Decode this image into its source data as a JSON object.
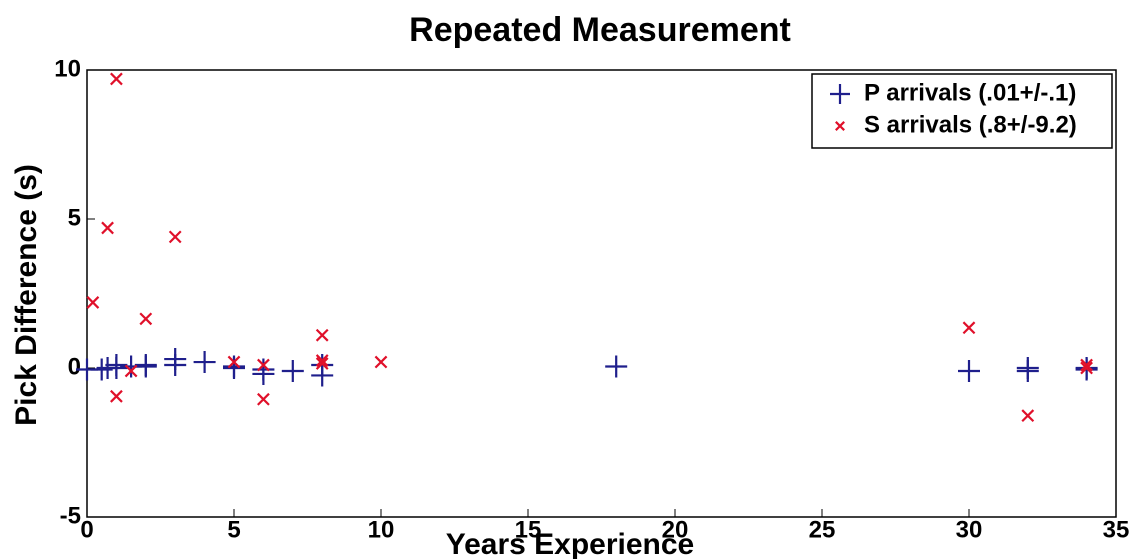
{
  "chart_data": {
    "type": "scatter",
    "title": "Repeated Measurement",
    "x_label": "Years Experience",
    "y_label": "Pick Difference (s)",
    "xlim": [
      0,
      35
    ],
    "xticks": [
      0,
      5,
      10,
      15,
      20,
      25,
      30,
      35
    ],
    "ylim": [
      -5,
      10
    ],
    "yticks": [
      -5,
      0,
      5,
      10
    ],
    "grid": false,
    "legend_position": "upper-right",
    "series": [
      {
        "name": "P arrivals (.01+/-.1)",
        "color": "#1f1f8c",
        "marker": "plus",
        "x": [
          0,
          0.5,
          0.7,
          1,
          1,
          1.5,
          2,
          2,
          3,
          3,
          4,
          5,
          5,
          6,
          6,
          7,
          8,
          8,
          18,
          30,
          32,
          32,
          34,
          34
        ],
        "values": [
          -0.05,
          -0.05,
          0,
          0.1,
          0,
          0.05,
          0.1,
          0.05,
          0.3,
          0.1,
          0.2,
          0.05,
          0,
          -0.2,
          -0.05,
          -0.1,
          -0.25,
          0.1,
          0.05,
          -0.1,
          -0.1,
          0,
          0,
          -0.05
        ]
      },
      {
        "name": "S arrivals (.8+/-9.2)",
        "color": "#e0102a",
        "marker": "x",
        "x": [
          0.2,
          0.7,
          1,
          1,
          1.5,
          2,
          3,
          5,
          6,
          6,
          8,
          8,
          8,
          10,
          30,
          32,
          34,
          34
        ],
        "values": [
          2.2,
          4.7,
          9.7,
          -0.95,
          -0.1,
          1.65,
          4.4,
          0.2,
          0.1,
          -1.05,
          1.1,
          0.25,
          0.15,
          0.2,
          1.35,
          -1.6,
          0.1,
          0
        ]
      }
    ]
  }
}
